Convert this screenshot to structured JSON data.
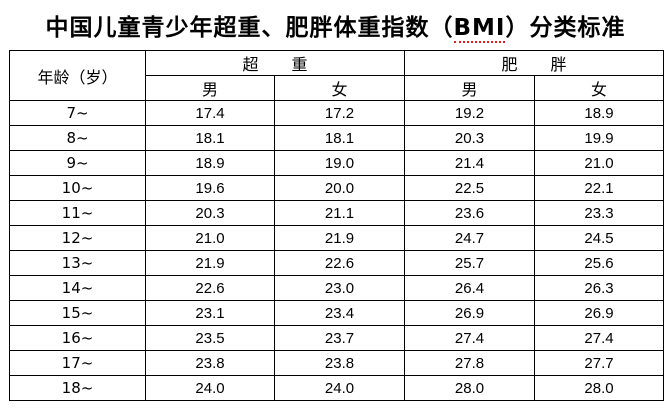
{
  "document": {
    "title_prefix": "中国儿童青少年超重、肥胖体重指数（",
    "title_abbr": "BMI",
    "title_suffix": "）分类标准"
  },
  "table": {
    "age_header": "年龄（岁）",
    "group_overweight": "超 重",
    "group_obese": "肥 胖",
    "sex_male": "男",
    "sex_female": "女",
    "rows": [
      {
        "age": "7~",
        "overweight_male": "17.4",
        "overweight_female": "17.2",
        "obese_male": "19.2",
        "obese_female": "18.9"
      },
      {
        "age": "8~",
        "overweight_male": "18.1",
        "overweight_female": "18.1",
        "obese_male": "20.3",
        "obese_female": "19.9"
      },
      {
        "age": "9~",
        "overweight_male": "18.9",
        "overweight_female": "19.0",
        "obese_male": "21.4",
        "obese_female": "21.0"
      },
      {
        "age": "10~",
        "overweight_male": "19.6",
        "overweight_female": "20.0",
        "obese_male": "22.5",
        "obese_female": "22.1"
      },
      {
        "age": "11~",
        "overweight_male": "20.3",
        "overweight_female": "21.1",
        "obese_male": "23.6",
        "obese_female": "23.3"
      },
      {
        "age": "12~",
        "overweight_male": "21.0",
        "overweight_female": "21.9",
        "obese_male": "24.7",
        "obese_female": "24.5"
      },
      {
        "age": "13~",
        "overweight_male": "21.9",
        "overweight_female": "22.6",
        "obese_male": "25.7",
        "obese_female": "25.6"
      },
      {
        "age": "14~",
        "overweight_male": "22.6",
        "overweight_female": "23.0",
        "obese_male": "26.4",
        "obese_female": "26.3"
      },
      {
        "age": "15~",
        "overweight_male": "23.1",
        "overweight_female": "23.4",
        "obese_male": "26.9",
        "obese_female": "26.9"
      },
      {
        "age": "16~",
        "overweight_male": "23.5",
        "overweight_female": "23.7",
        "obese_male": "27.4",
        "obese_female": "27.4"
      },
      {
        "age": "17~",
        "overweight_male": "23.8",
        "overweight_female": "23.8",
        "obese_male": "27.8",
        "obese_female": "27.7"
      },
      {
        "age": "18~",
        "overweight_male": "24.0",
        "overweight_female": "24.0",
        "obese_male": "28.0",
        "obese_female": "28.0"
      }
    ]
  }
}
